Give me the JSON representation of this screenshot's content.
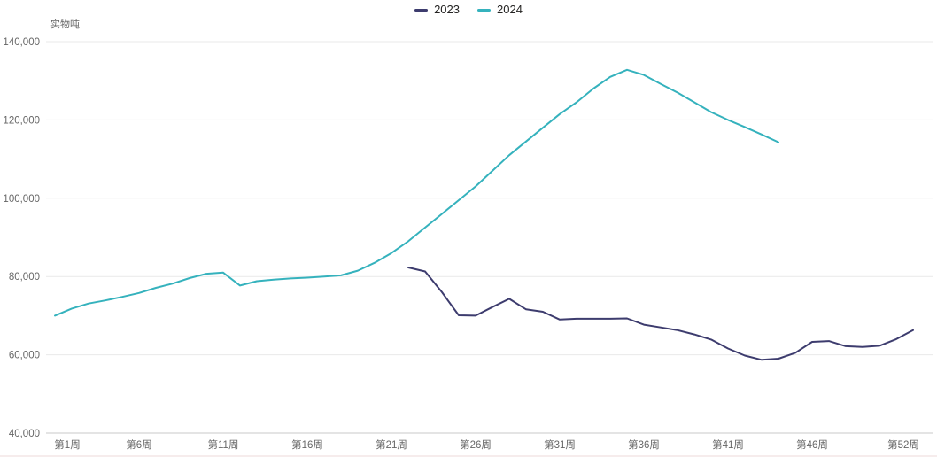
{
  "unit_label": "实物吨",
  "colors": {
    "background": "#ffffff",
    "series_2023": "#3d3c6e",
    "series_2024": "#35b2bd",
    "gridline": "#e9e9e9",
    "axis_baseline": "#c9c9c9",
    "axis_text": "#666666",
    "legend_text": "#252423"
  },
  "legend": {
    "items": [
      {
        "label": "2023",
        "color": "#3d3c6e"
      },
      {
        "label": "2024",
        "color": "#35b2bd"
      }
    ]
  },
  "chart_data": {
    "type": "line",
    "title": "",
    "xlabel": "",
    "ylabel": "实物吨",
    "ylim": [
      40000,
      140000
    ],
    "y_ticks": [
      40000,
      60000,
      80000,
      100000,
      120000,
      140000
    ],
    "y_tick_labels": [
      "40,000",
      "60,000",
      "80,000",
      "100,000",
      "120,000",
      "140,000"
    ],
    "x_tick_weeks": [
      1,
      6,
      11,
      16,
      21,
      26,
      31,
      36,
      41,
      46,
      52
    ],
    "x_tick_labels": [
      "第1周",
      "第6周",
      "第11周",
      "第16周",
      "第21周",
      "第26周",
      "第31周",
      "第36周",
      "第41周",
      "第46周",
      "第52周"
    ],
    "x_range_weeks": [
      1,
      52
    ],
    "grid": "horizontal-only",
    "legend_position": "top-center",
    "series": [
      {
        "name": "2023",
        "color": "#3d3c6e",
        "points": [
          [
            22,
            82300
          ],
          [
            23,
            81300
          ],
          [
            24,
            76000
          ],
          [
            25,
            70100
          ],
          [
            26,
            70000
          ],
          [
            27,
            72200
          ],
          [
            28,
            74300
          ],
          [
            29,
            71600
          ],
          [
            30,
            71000
          ],
          [
            31,
            69000
          ],
          [
            32,
            69200
          ],
          [
            33,
            69200
          ],
          [
            34,
            69200
          ],
          [
            35,
            69300
          ],
          [
            36,
            67700
          ],
          [
            37,
            67000
          ],
          [
            38,
            66300
          ],
          [
            39,
            65200
          ],
          [
            40,
            63900
          ],
          [
            41,
            61600
          ],
          [
            42,
            59800
          ],
          [
            43,
            58700
          ],
          [
            44,
            59000
          ],
          [
            45,
            60500
          ],
          [
            46,
            63300
          ],
          [
            47,
            63500
          ],
          [
            48,
            62200
          ],
          [
            49,
            62000
          ],
          [
            50,
            62300
          ],
          [
            51,
            64000
          ],
          [
            52,
            66300
          ]
        ]
      },
      {
        "name": "2024",
        "color": "#35b2bd",
        "points": [
          [
            1,
            70000
          ],
          [
            2,
            71800
          ],
          [
            3,
            73100
          ],
          [
            4,
            73900
          ],
          [
            5,
            74800
          ],
          [
            6,
            75800
          ],
          [
            7,
            77100
          ],
          [
            8,
            78200
          ],
          [
            9,
            79600
          ],
          [
            10,
            80700
          ],
          [
            11,
            81000
          ],
          [
            12,
            77700
          ],
          [
            13,
            78800
          ],
          [
            14,
            79200
          ],
          [
            15,
            79500
          ],
          [
            16,
            79700
          ],
          [
            17,
            80000
          ],
          [
            18,
            80300
          ],
          [
            19,
            81500
          ],
          [
            20,
            83500
          ],
          [
            21,
            86000
          ],
          [
            22,
            89000
          ],
          [
            23,
            92500
          ],
          [
            24,
            96000
          ],
          [
            25,
            99500
          ],
          [
            26,
            103000
          ],
          [
            27,
            107000
          ],
          [
            28,
            111000
          ],
          [
            29,
            114500
          ],
          [
            30,
            118000
          ],
          [
            31,
            121500
          ],
          [
            32,
            124500
          ],
          [
            33,
            128000
          ],
          [
            34,
            131000
          ],
          [
            35,
            132800
          ],
          [
            36,
            131500
          ],
          [
            37,
            129200
          ],
          [
            38,
            127000
          ],
          [
            39,
            124500
          ],
          [
            40,
            122000
          ],
          [
            41,
            120000
          ],
          [
            42,
            118200
          ],
          [
            43,
            116300
          ],
          [
            44,
            114300
          ]
        ]
      }
    ]
  }
}
